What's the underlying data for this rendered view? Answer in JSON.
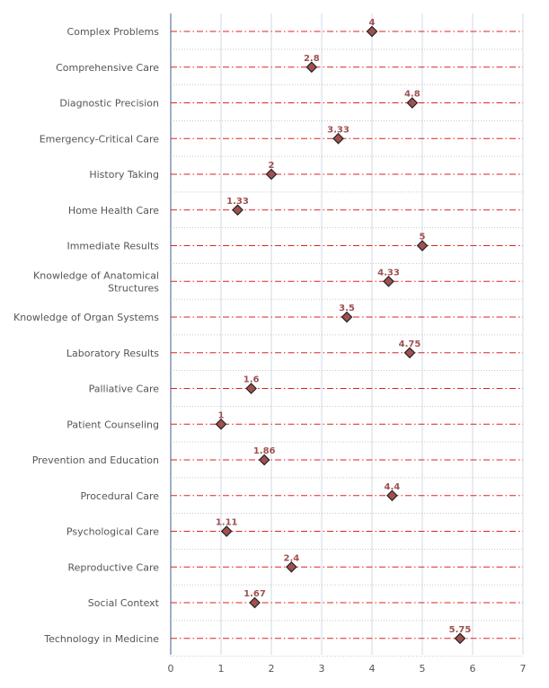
{
  "chart_data": {
    "type": "scatter",
    "orientation": "horizontal-lollipop",
    "title": "",
    "xlabel": "",
    "ylabel": "",
    "xlim": [
      0,
      7
    ],
    "x_ticks": [
      "0",
      "1",
      "2",
      "3",
      "4",
      "5",
      "6",
      "7"
    ],
    "grid": true,
    "categories": [
      "Complex Problems",
      "Comprehensive Care",
      "Diagnostic Precision",
      "Emergency-Critical Care",
      "History Taking",
      "Home Health Care",
      "Immediate Results",
      "Knowledge of Anatomical Structures",
      "Knowledge of Organ Systems",
      "Laboratory Results",
      "Palliative Care",
      "Patient Counseling",
      "Prevention and Education",
      "Procedural Care",
      "Psychological Care",
      "Reproductive Care",
      "Social Context",
      "Technology in Medicine"
    ],
    "category_lines": [
      [
        "Complex Problems"
      ],
      [
        "Comprehensive Care"
      ],
      [
        "Diagnostic Precision"
      ],
      [
        "Emergency-Critical Care"
      ],
      [
        "History Taking"
      ],
      [
        "Home Health Care"
      ],
      [
        "Immediate Results"
      ],
      [
        "Knowledge of Anatomical",
        "Structures"
      ],
      [
        "Knowledge of Organ Systems"
      ],
      [
        "Laboratory Results"
      ],
      [
        "Palliative Care"
      ],
      [
        "Patient Counseling"
      ],
      [
        "Prevention and Education"
      ],
      [
        "Procedural Care"
      ],
      [
        "Psychological Care"
      ],
      [
        "Reproductive Care"
      ],
      [
        "Social Context"
      ],
      [
        "Technology in Medicine"
      ]
    ],
    "values": [
      4,
      2.8,
      4.8,
      3.33,
      2,
      1.33,
      5,
      4.33,
      3.5,
      4.75,
      1.6,
      1,
      1.86,
      4.4,
      1.11,
      2.4,
      1.67,
      5.75
    ],
    "data_labels": [
      "4",
      "2.8",
      "4.8",
      "3.33",
      "2",
      "1.33",
      "5",
      "4.33",
      "3.5",
      "4.75",
      "1.6",
      "1",
      "1.86",
      "4.4",
      "1.11",
      "2.4",
      "1.67",
      "5.75"
    ],
    "colors": {
      "marker_fill": "#a05050",
      "marker_stroke": "#222222",
      "row_line": "#dd2222",
      "grid": "#d0d8e4",
      "axis": "#9fb0c4",
      "label_text": "#555555",
      "data_label": "#a05050"
    }
  }
}
